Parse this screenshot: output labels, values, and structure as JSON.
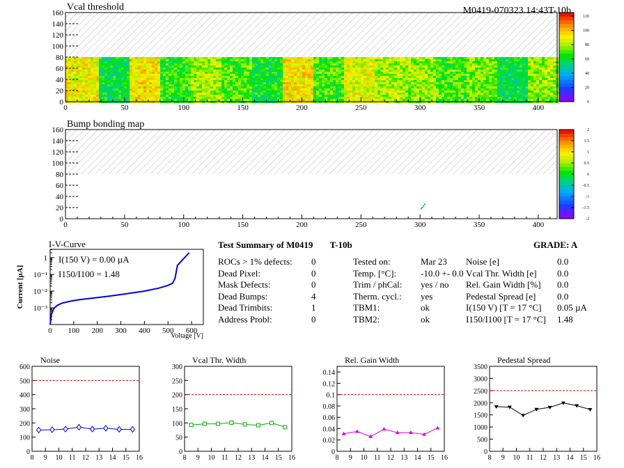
{
  "module_id": "M0419-070323.14:43T-10b",
  "chart_data": [
    {
      "type": "heatmap",
      "title": "Vcal threshold",
      "x_ticks": [
        "0",
        "50",
        "100",
        "150",
        "200",
        "250",
        "300",
        "350",
        "400"
      ],
      "y_ticks": [
        "0",
        "20",
        "40",
        "60",
        "80",
        "100",
        "120",
        "140",
        "160"
      ],
      "xlim": [
        0,
        416
      ],
      "ylim": [
        0,
        160
      ],
      "data_rows": [
        0,
        80
      ],
      "roc_mean_level": [
        0.72,
        0.48,
        0.74,
        0.53,
        0.64,
        0.57,
        0.49,
        0.74,
        0.55,
        0.7,
        0.64,
        0.62,
        0.55,
        0.6,
        0.47,
        0.62
      ],
      "colorbar_ticks": [
        "0",
        "20",
        "40",
        "60",
        "80",
        "100",
        "120"
      ],
      "colorbar_range": [
        0,
        125
      ]
    },
    {
      "type": "heatmap",
      "title": "Bump bonding map",
      "x_ticks": [
        "0",
        "50",
        "100",
        "150",
        "200",
        "250",
        "300",
        "350",
        "400"
      ],
      "y_ticks": [
        "0",
        "20",
        "40",
        "60",
        "80",
        "100",
        "120",
        "140",
        "160"
      ],
      "xlim": [
        0,
        416
      ],
      "ylim": [
        0,
        160
      ],
      "marked_pixels": [
        [
          302,
          20
        ],
        [
          303,
          23
        ],
        [
          301,
          18
        ],
        [
          304,
          26
        ]
      ],
      "colorbar_ticks": [
        "-2",
        "-1.5",
        "-1",
        "-0.5",
        "0",
        "0.5",
        "1",
        "1.5",
        "2"
      ],
      "colorbar_range": [
        -2,
        2
      ]
    },
    {
      "type": "line",
      "title": "I-V-Curve",
      "xlabel": "Voltage [V]",
      "ylabel": "Current [µA]",
      "x_ticks": [
        "0",
        "100",
        "200",
        "300",
        "400",
        "500",
        "600"
      ],
      "y_ticks": [
        "10⁻³",
        "10⁻²",
        "10⁻¹",
        "1"
      ],
      "xlim": [
        0,
        650
      ],
      "ylim_log10": [
        -4,
        0.5
      ],
      "x": [
        0,
        5,
        15,
        30,
        50,
        80,
        120,
        180,
        250,
        320,
        400,
        460,
        500,
        520,
        530,
        540,
        560,
        580,
        590
      ],
      "y": [
        0.0001,
        0.0004,
        0.0009,
        0.0014,
        0.0019,
        0.0024,
        0.003,
        0.0038,
        0.005,
        0.0068,
        0.01,
        0.015,
        0.022,
        0.03,
        0.06,
        0.35,
        0.7,
        1.4,
        2.0
      ],
      "annotations": [
        "I(150 V) = 0.00 µA",
        "I150/I100 = 1.48"
      ]
    },
    {
      "type": "line",
      "title": "Noise",
      "x": [
        8.5,
        9.5,
        10.5,
        11.5,
        12.5,
        13.5,
        14.5,
        15.5
      ],
      "y": [
        150,
        152,
        157,
        170,
        157,
        163,
        155,
        155
      ],
      "errors": [
        10,
        10,
        10,
        10,
        10,
        10,
        10,
        10
      ],
      "limit": 500,
      "xlim": [
        8,
        16
      ],
      "ylim": [
        0,
        600
      ],
      "x_ticks": [
        "8",
        "9",
        "10",
        "11",
        "12",
        "13",
        "14",
        "15",
        "16"
      ],
      "y_ticks": [
        "0",
        "100",
        "200",
        "300",
        "400",
        "500",
        "600"
      ],
      "color": "#0000cc",
      "marker": "diamond"
    },
    {
      "type": "line",
      "title": "Vcal Thr. Width",
      "x": [
        8.5,
        9.5,
        10.5,
        11.5,
        12.5,
        13.5,
        14.5,
        15.5
      ],
      "y": [
        93,
        97,
        97,
        101,
        95,
        92,
        100,
        85
      ],
      "limit": 200,
      "xlim": [
        8,
        16
      ],
      "ylim": [
        0,
        300
      ],
      "x_ticks": [
        "8",
        "9",
        "10",
        "11",
        "12",
        "13",
        "14",
        "15",
        "16"
      ],
      "y_ticks": [
        "0",
        "50",
        "100",
        "150",
        "200",
        "250",
        "300"
      ],
      "color": "#00aa00",
      "marker": "square"
    },
    {
      "type": "line",
      "title": "Rel. Gain Width",
      "x": [
        8.5,
        9.5,
        10.5,
        11.5,
        12.5,
        13.5,
        14.5,
        15.5
      ],
      "y": [
        0.031,
        0.035,
        0.026,
        0.039,
        0.033,
        0.033,
        0.03,
        0.041
      ],
      "limit": 0.1,
      "xlim": [
        8,
        16
      ],
      "ylim": [
        0,
        0.15
      ],
      "x_ticks": [
        "8",
        "9",
        "10",
        "11",
        "12",
        "13",
        "14",
        "15",
        "16"
      ],
      "y_ticks": [
        "0",
        "0.02",
        "0.04",
        "0.06",
        "0.08",
        "0.1",
        "0.12",
        "0.14"
      ],
      "color": "#dd00dd",
      "marker": "triangle"
    },
    {
      "type": "line",
      "title": "Pedestal Spread",
      "x": [
        8.5,
        9.5,
        10.5,
        11.5,
        12.5,
        13.5,
        14.5,
        15.5
      ],
      "y": [
        1840,
        1820,
        1480,
        1730,
        1810,
        1990,
        1880,
        1720
      ],
      "limit": 2500,
      "xlim": [
        8,
        16
      ],
      "ylim": [
        0,
        3500
      ],
      "x_ticks": [
        "8",
        "9",
        "10",
        "11",
        "12",
        "13",
        "14",
        "15",
        "16"
      ],
      "y_ticks": [
        "0",
        "500",
        "1000",
        "1500",
        "2000",
        "2500",
        "3000",
        "3500"
      ],
      "color": "#000000",
      "marker": "triangle-down"
    }
  ],
  "summary": {
    "title": "Test Summary of M0419",
    "tag": "T-10b",
    "grade_label": "GRADE:",
    "grade": "A",
    "col1": [
      {
        "label": "ROCs > 1% defects:",
        "value": "0"
      },
      {
        "label": "Dead Pixel:",
        "value": "0"
      },
      {
        "label": "Mask Defects:",
        "value": "0"
      },
      {
        "label": "Dead Bumps:",
        "value": "4"
      },
      {
        "label": "Dead Trimbits:",
        "value": "1"
      },
      {
        "label": "Address Probl:",
        "value": "0"
      }
    ],
    "col2": [
      {
        "label": "Tested on:",
        "value": "Mar 23"
      },
      {
        "label": "Temp. [°C]:",
        "value": "-10.0 +- 0.0"
      },
      {
        "label": "Trim / phCal:",
        "value": "yes / no"
      },
      {
        "label": "Therm. cycl.:",
        "value": "yes"
      },
      {
        "label": "TBM1:",
        "value": "ok"
      },
      {
        "label": "TBM2:",
        "value": "ok"
      }
    ],
    "col3": [
      {
        "label": "Noise [e]",
        "value": "0.0"
      },
      {
        "label": "Vcal Thr. Width [e]",
        "value": "0.0"
      },
      {
        "label": "Rel. Gain Width [%]",
        "value": "0.0"
      },
      {
        "label": "Pedestal Spread [e]",
        "value": "0.0"
      },
      {
        "label": "I(150 V) [T = 17 °C]",
        "value": "0.05 µA"
      },
      {
        "label": "I150/I100   [T = 17 °C]",
        "value": "1.48"
      }
    ]
  }
}
